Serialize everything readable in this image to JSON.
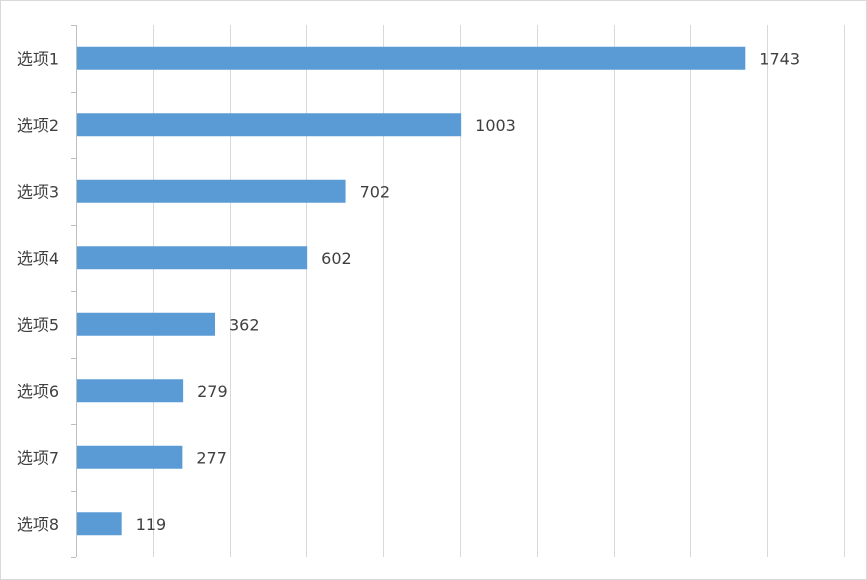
{
  "chart_data": {
    "type": "bar",
    "orientation": "horizontal",
    "categories": [
      "选项1",
      "选项2",
      "选项3",
      "选项4",
      "选项5",
      "选项6",
      "选项7",
      "选项8"
    ],
    "values": [
      1743,
      1003,
      702,
      602,
      362,
      279,
      277,
      119
    ],
    "title": "",
    "xlabel": "",
    "ylabel": "",
    "xlim": [
      0,
      2000
    ],
    "x_gridline_step": 200,
    "x_tick_labels_visible": false,
    "grid": true,
    "legend": "none",
    "data_labels": true
  },
  "colors": {
    "bar": "#5b9bd5",
    "gridline": "#d9d9d9",
    "axis": "#bfbfbf",
    "text": "#404040"
  }
}
